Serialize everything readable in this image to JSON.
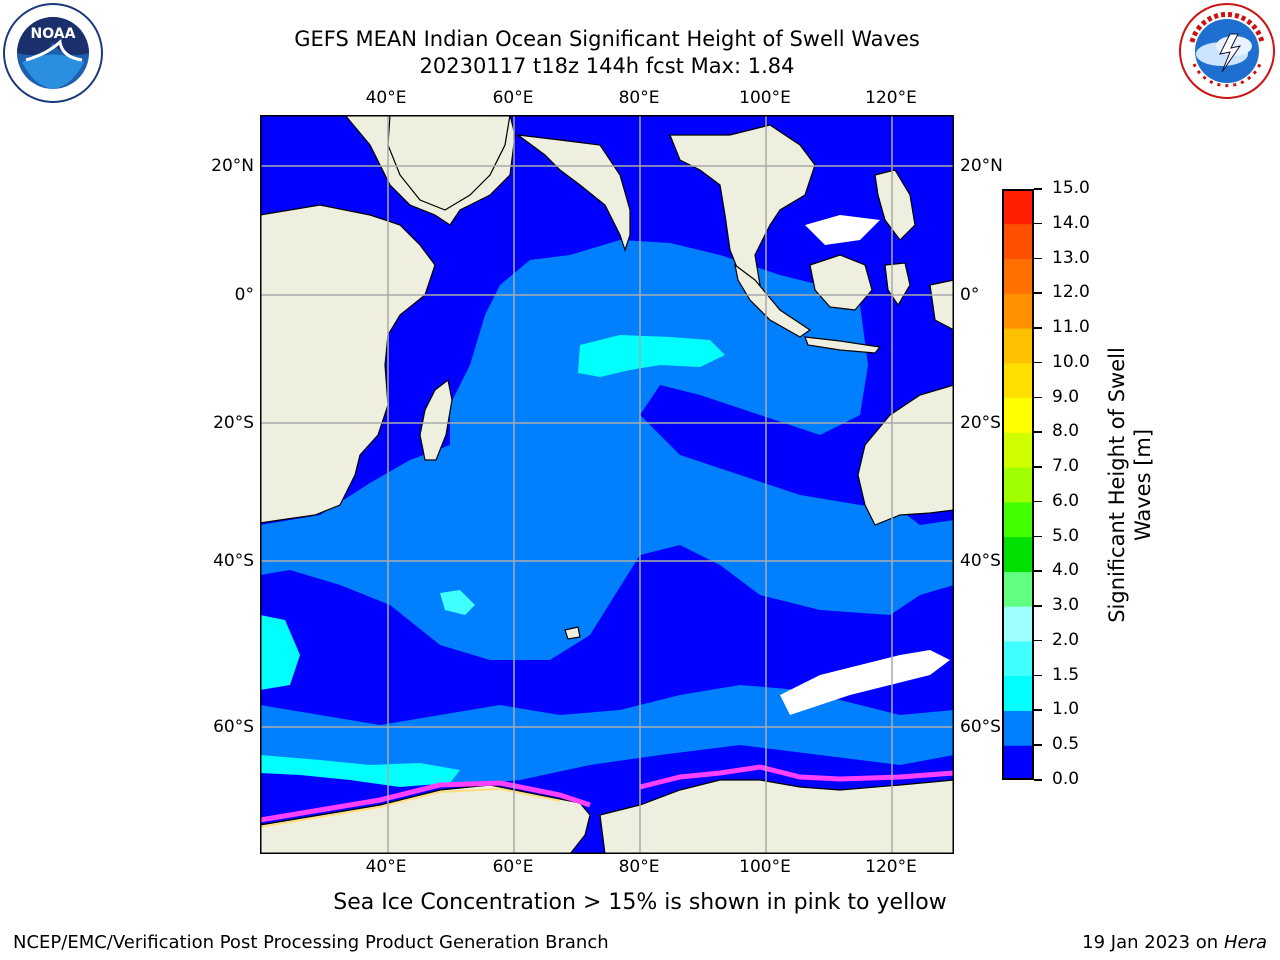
{
  "header": {
    "title": "GEFS MEAN Indian Ocean Significant Height of Swell Waves",
    "subtitle": "20230117 t18z 144h fcst   Max: 1.84"
  },
  "map": {
    "lon_labels": [
      "40°E",
      "60°E",
      "80°E",
      "100°E",
      "120°E"
    ],
    "lat_labels": [
      "20°N",
      "0°",
      "20°S",
      "40°S",
      "60°S"
    ],
    "extent": {
      "lon": [
        20,
        130
      ],
      "lat": [
        -74,
        28
      ]
    },
    "ocean_color": "#0000ff",
    "land_color": "#efefdf"
  },
  "colorbar": {
    "label_line1": "Significant Height of Swell",
    "label_line2": "Waves [m]",
    "ticks": [
      "0.0",
      "0.5",
      "1.0",
      "1.5",
      "2.0",
      "3.0",
      "4.0",
      "5.0",
      "6.0",
      "7.0",
      "8.0",
      "9.0",
      "10.0",
      "11.0",
      "12.0",
      "13.0",
      "14.0",
      "15.0"
    ],
    "colors": [
      "#0000ff",
      "#0080ff",
      "#00ffff",
      "#40ffff",
      "#a0ffff",
      "#60ff80",
      "#00e000",
      "#40ff00",
      "#a0ff00",
      "#d0ff00",
      "#ffff00",
      "#ffe000",
      "#ffc000",
      "#ff9000",
      "#ff7000",
      "#ff5000",
      "#ff2000"
    ]
  },
  "caption": "Sea Ice Concentration > 15% is shown in pink to yellow",
  "footer": {
    "left": "NCEP/EMC/Verification Post Processing Product Generation Branch",
    "right_prefix": "19 Jan 2023 on ",
    "right_machine": "Hera"
  },
  "logos": {
    "left_text": "NOAA",
    "right_text": "NATIONAL WEATHER SERVICE"
  }
}
